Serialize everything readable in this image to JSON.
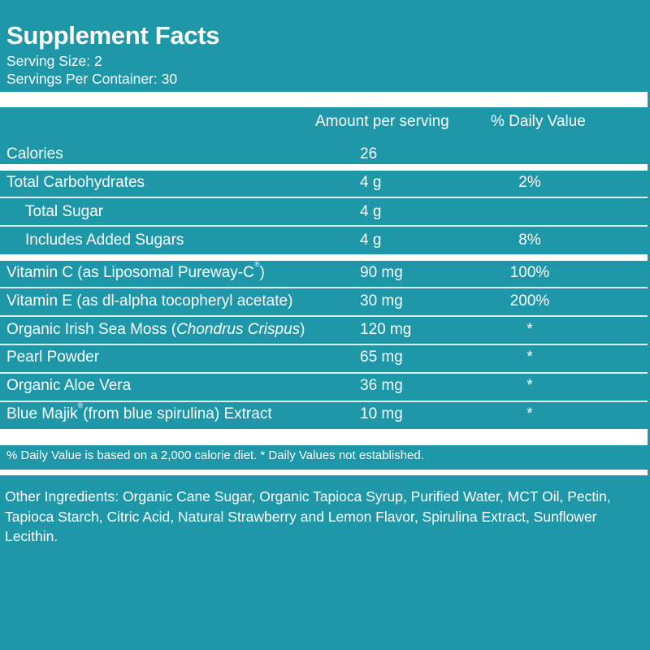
{
  "header": {
    "title": "Supplement Facts",
    "serving_size": "Serving Size: 2",
    "servings_per_container": "Servings Per Container: 30"
  },
  "columns": {
    "amount": "Amount per serving",
    "daily_value": "% Daily Value"
  },
  "rows": [
    {
      "name": "Calories",
      "amount": "26",
      "dv": ""
    },
    {
      "name": "Total Carbohydrates",
      "amount": "4 g",
      "dv": "2%"
    },
    {
      "name": "Total Sugar",
      "amount": "4 g",
      "dv": ""
    },
    {
      "name": "Includes Added Sugars",
      "amount": "4 g",
      "dv": "8%"
    },
    {
      "name": "Vitamin C (as Liposomal Pureway-C",
      "name_mark": "®",
      "name_after": ")",
      "amount": "90 mg",
      "dv": "100%"
    },
    {
      "name": "Vitamin E (as dl-alpha tocopheryl acetate)",
      "amount": "30 mg",
      "dv": "200%"
    },
    {
      "name": "Organic Irish Sea Moss (",
      "name_italic": "Chondrus Crispus",
      "name_after": ")",
      "amount": "120 mg",
      "dv": "*"
    },
    {
      "name": "Pearl Powder",
      "amount": "65 mg",
      "dv": "*"
    },
    {
      "name": "Organic Aloe Vera",
      "amount": "36 mg",
      "dv": "*"
    },
    {
      "name": "Blue Majik",
      "name_mark": "®",
      "name_after": "(from blue spirulina) Extract",
      "amount": "10 mg",
      "dv": "*"
    }
  ],
  "footnote": "% Daily Value is based on a 2,000 calorie diet. * Daily Values not established.",
  "other_ingredients": "Other Ingredients: Organic Cane Sugar, Organic Tapioca Syrup, Purified Water, MCT Oil, Pectin, Tapioca Starch, Citric Acid, Natural Strawberry and Lemon Flavor, Spirulina Extract, Sunflower Lecithin."
}
